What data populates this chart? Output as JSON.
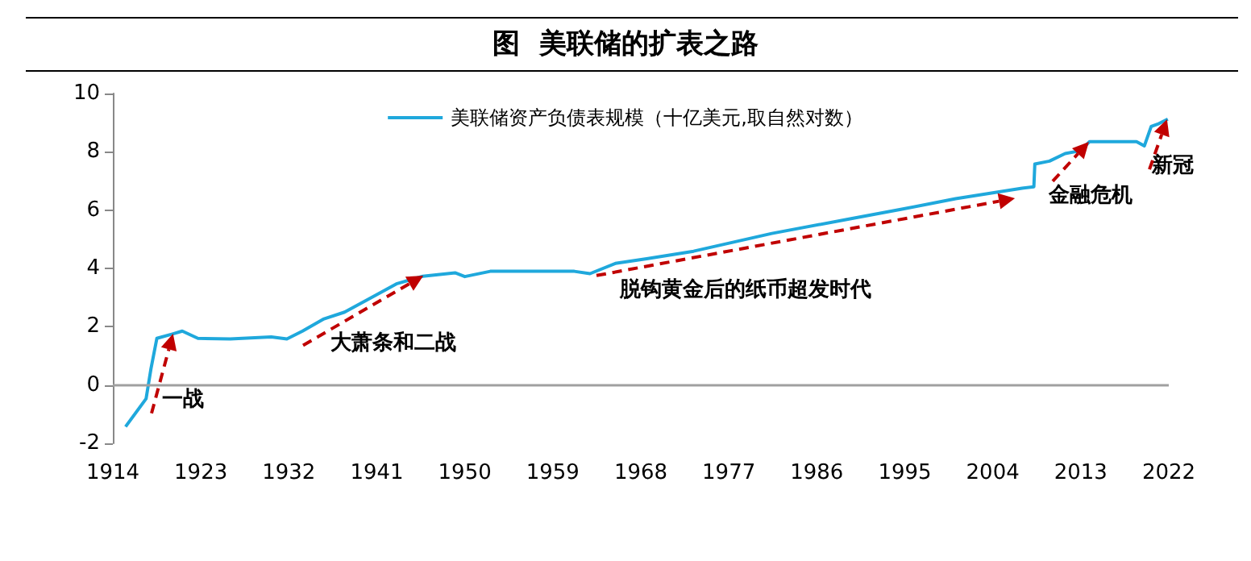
{
  "chart_data": {
    "type": "line",
    "title": "图  美联储的扩表之路",
    "x": [
      1915.3,
      1917.4,
      1917.9,
      1918.5,
      1920.1,
      1921.1,
      1922.7,
      1926,
      1930.2,
      1931.8,
      1933.4,
      1935.6,
      1937.7,
      1941,
      1943,
      1945.7,
      1949,
      1950,
      1952.6,
      1961.2,
      1962.8,
      1965.4,
      1968.6,
      1973.4,
      1981.4,
      1989.4,
      1994.7,
      2000.2,
      2007,
      2008.2,
      2008.3,
      2009.8,
      2011.4,
      2013,
      2013.9,
      2018.7,
      2019.5,
      2020.2,
      2021,
      2021.9
    ],
    "series": [
      {
        "name": "美联储资产负债表规模（十亿美元,取自然对数）",
        "color": "#1fa8dc",
        "values": [
          -1.43,
          -0.47,
          0.56,
          1.6,
          1.75,
          1.85,
          1.6,
          1.58,
          1.65,
          1.58,
          1.85,
          2.27,
          2.5,
          3.1,
          3.47,
          3.73,
          3.85,
          3.72,
          3.9,
          3.9,
          3.82,
          4.17,
          4.33,
          4.59,
          5.2,
          5.7,
          6.03,
          6.39,
          6.75,
          6.8,
          7.58,
          7.68,
          7.94,
          8.04,
          8.35,
          8.35,
          8.2,
          8.87,
          8.97,
          9.12
        ]
      }
    ],
    "xlim": [
      1914,
      2022
    ],
    "xticks": [
      1914,
      1923,
      1932,
      1941,
      1950,
      1959,
      1968,
      1977,
      1986,
      1995,
      2004,
      2013,
      2022
    ],
    "ylim": [
      -2,
      10
    ],
    "yticks": [
      -2,
      0,
      2,
      4,
      6,
      8,
      10
    ],
    "ref_lines": [
      {
        "axis": "y",
        "value": 0,
        "color": "#a0a0a0"
      }
    ],
    "annotations": [
      {
        "text": "一战",
        "x": 1920.1,
        "y": 1.75
      },
      {
        "text": "大萧条和二战",
        "x": 1945.7,
        "y": 3.73
      },
      "脱钩黄金后的纸币超发时代",
      {
        "text": "金融危机",
        "x": 2013.9,
        "y": 8.35
      },
      {
        "text": "新冠",
        "x": 2021.9,
        "y": 9.12
      }
    ],
    "grid": false,
    "legend": "top",
    "marker": "none",
    "line_style": "solid"
  }
}
